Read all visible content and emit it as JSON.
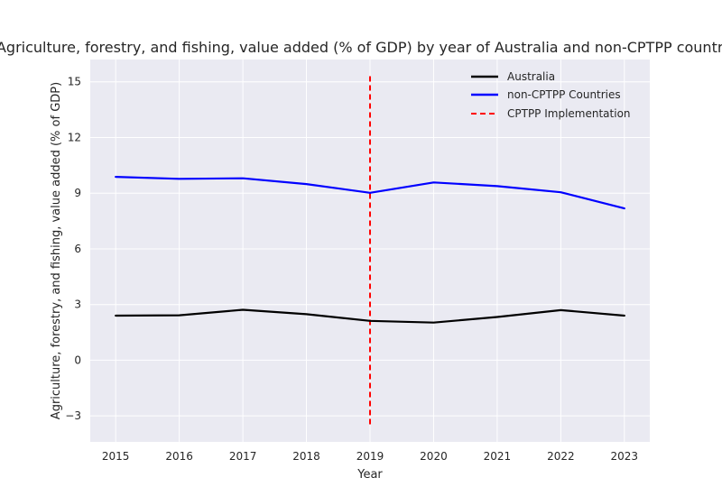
{
  "chart_data": {
    "type": "line",
    "title": "Agriculture, forestry, and fishing, value added (% of GDP) by year of Australia and non-CPTPP countries",
    "xlabel": "Year",
    "ylabel": "Agriculture, forestry, and fishing, value added (% of GDP)",
    "x": [
      2015,
      2016,
      2017,
      2018,
      2019,
      2020,
      2021,
      2022,
      2023
    ],
    "x_tick_labels": [
      "2015",
      "2016",
      "2017",
      "2018",
      "2019",
      "2020",
      "2021",
      "2022",
      "2023"
    ],
    "y_ticks": [
      -3,
      0,
      3,
      6,
      9,
      12,
      15
    ],
    "y_tick_labels": [
      "−3",
      "0",
      "3",
      "6",
      "9",
      "12",
      "15"
    ],
    "xlim": [
      2014.6,
      2023.4
    ],
    "ylim": [
      -4.4,
      16.2
    ],
    "grid": true,
    "legend_position": "top-right",
    "series": [
      {
        "name": "Australia",
        "color": "#000000",
        "style": "solid",
        "values": [
          2.4,
          2.42,
          2.72,
          2.48,
          2.12,
          2.03,
          2.33,
          2.7,
          2.4
        ]
      },
      {
        "name": "non-CPTPP Countries",
        "color": "#0000ff",
        "style": "solid",
        "values": [
          9.88,
          9.77,
          9.8,
          9.49,
          9.02,
          9.58,
          9.38,
          9.05,
          8.18
        ]
      }
    ],
    "annotations": [
      {
        "name": "CPTPP Implementation",
        "type": "vline",
        "x": 2019,
        "y_range": [
          -3.5,
          15.3
        ],
        "color": "#ff0000",
        "style": "dashed"
      }
    ]
  }
}
